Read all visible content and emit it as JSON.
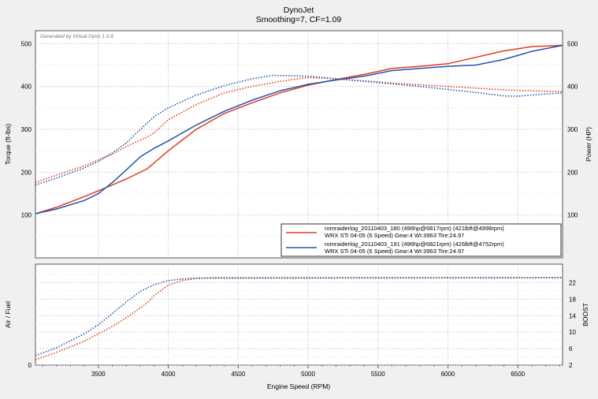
{
  "chart_data": {
    "type": "line",
    "title": "DynoJet",
    "subtitle": "Smoothing=7, CF=1.09",
    "watermark": "Generated by Virtual Dyno 1.0.8",
    "xlabel": "Engine Speed (RPM)",
    "xlim": [
      3050,
      6820
    ],
    "x_ticks": [
      "3500",
      "4000",
      "4500",
      "5000",
      "5500",
      "6000",
      "6500"
    ],
    "colors": {
      "run180": "#e03c1e",
      "run191": "#2255b0"
    },
    "legend_placement": "lower-right",
    "legend": [
      {
        "key": "run180",
        "line1": "romraiderlog_20110403_180 (496hp@6817rpm) (421lbft@4998rpm)",
        "line2": "WRX STi 04-05 (6 Speed) Gear:4 Wt:3963 Tire:24.97"
      },
      {
        "key": "run191",
        "line1": "romraiderlog_20110403_191 (496hp@6821rpm) (426lbft@4752rpm)",
        "line2": "WRX STi 04-05 (6 Speed) Gear:4 Wt:3963 Tire:24.97"
      }
    ],
    "top": {
      "ylabel_left": "Torque (ft-lbs)",
      "ylabel_right": "Power (HP)",
      "ylim": [
        0,
        530
      ],
      "y_ticks": [
        "100",
        "200",
        "300",
        "400",
        "500"
      ],
      "series": [
        {
          "key": "run180",
          "measure": "power",
          "style": "solid",
          "points": [
            [
              3050,
              103
            ],
            [
              3200,
              118
            ],
            [
              3400,
              143
            ],
            [
              3600,
              170
            ],
            [
              3700,
              184
            ],
            [
              3850,
              208
            ],
            [
              3900,
              222
            ],
            [
              4000,
              250
            ],
            [
              4100,
              275
            ],
            [
              4200,
              300
            ],
            [
              4400,
              337
            ],
            [
              4600,
              362
            ],
            [
              4800,
              385
            ],
            [
              5000,
              403
            ],
            [
              5200,
              416
            ],
            [
              5400,
              428
            ],
            [
              5600,
              442
            ],
            [
              5800,
              447
            ],
            [
              6000,
              453
            ],
            [
              6200,
              468
            ],
            [
              6400,
              483
            ],
            [
              6600,
              493
            ],
            [
              6820,
              496
            ]
          ]
        },
        {
          "key": "run191",
          "measure": "power",
          "style": "solid",
          "points": [
            [
              3050,
              103
            ],
            [
              3200,
              114
            ],
            [
              3400,
              134
            ],
            [
              3500,
              150
            ],
            [
              3600,
              176
            ],
            [
              3700,
              205
            ],
            [
              3800,
              236
            ],
            [
              3900,
              256
            ],
            [
              4000,
              273
            ],
            [
              4200,
              310
            ],
            [
              4400,
              342
            ],
            [
              4600,
              368
            ],
            [
              4800,
              390
            ],
            [
              5000,
              405
            ],
            [
              5200,
              415
            ],
            [
              5400,
              424
            ],
            [
              5600,
              437
            ],
            [
              5800,
              442
            ],
            [
              6000,
              447
            ],
            [
              6200,
              450
            ],
            [
              6400,
              463
            ],
            [
              6600,
              482
            ],
            [
              6821,
              496
            ]
          ]
        },
        {
          "key": "run180",
          "measure": "torque",
          "style": "dotted",
          "points": [
            [
              3050,
              176
            ],
            [
              3200,
              193
            ],
            [
              3400,
              215
            ],
            [
              3600,
              242
            ],
            [
              3700,
              260
            ],
            [
              3850,
              282
            ],
            [
              3900,
              292
            ],
            [
              4000,
              322
            ],
            [
              4200,
              358
            ],
            [
              4400,
              385
            ],
            [
              4600,
              400
            ],
            [
              4800,
              412
            ],
            [
              4998,
              421
            ],
            [
              5200,
              418
            ],
            [
              5400,
              413
            ],
            [
              5600,
              408
            ],
            [
              5800,
              404
            ],
            [
              6000,
              400
            ],
            [
              6200,
              396
            ],
            [
              6400,
              392
            ],
            [
              6600,
              390
            ],
            [
              6820,
              388
            ]
          ]
        },
        {
          "key": "run191",
          "measure": "torque",
          "style": "dotted",
          "points": [
            [
              3050,
              170
            ],
            [
              3200,
              186
            ],
            [
              3400,
              210
            ],
            [
              3500,
              225
            ],
            [
              3600,
              245
            ],
            [
              3700,
              268
            ],
            [
              3800,
              300
            ],
            [
              3900,
              330
            ],
            [
              4000,
              350
            ],
            [
              4200,
              380
            ],
            [
              4400,
              402
            ],
            [
              4600,
              418
            ],
            [
              4752,
              426
            ],
            [
              5000,
              424
            ],
            [
              5200,
              418
            ],
            [
              5400,
              412
            ],
            [
              5600,
              406
            ],
            [
              5800,
              400
            ],
            [
              6000,
              393
            ],
            [
              6200,
              386
            ],
            [
              6400,
              378
            ],
            [
              6500,
              377
            ],
            [
              6600,
              380
            ],
            [
              6821,
              385
            ]
          ]
        }
      ]
    },
    "bottom": {
      "ylabel_left": "Air / Fuel",
      "ylabel_right": "BOOST",
      "left_ticks": [
        "0"
      ],
      "ylim_right": [
        2,
        24
      ],
      "y_ticks_right": [
        "2",
        "6",
        "10",
        "14",
        "18",
        "22"
      ],
      "series": [
        {
          "key": "run180",
          "measure": "boost",
          "style": "dotted",
          "points": [
            [
              3050,
              3.3
            ],
            [
              3200,
              5.1
            ],
            [
              3400,
              7.8
            ],
            [
              3600,
              11.4
            ],
            [
              3700,
              13.5
            ],
            [
              3850,
              17.1
            ],
            [
              3900,
              18.9
            ],
            [
              4000,
              21.4
            ],
            [
              4100,
              22.5
            ],
            [
              4200,
              23.0
            ],
            [
              4300,
              23.2
            ],
            [
              6820,
              23.2
            ]
          ]
        },
        {
          "key": "run191",
          "measure": "boost",
          "style": "dotted",
          "points": [
            [
              3050,
              4.3
            ],
            [
              3200,
              6.2
            ],
            [
              3400,
              9.6
            ],
            [
              3500,
              11.8
            ],
            [
              3600,
              14.5
            ],
            [
              3700,
              17.3
            ],
            [
              3800,
              19.9
            ],
            [
              3900,
              21.5
            ],
            [
              4000,
              22.5
            ],
            [
              4100,
              22.9
            ],
            [
              4200,
              23.1
            ],
            [
              6821,
              23.2
            ]
          ]
        }
      ]
    }
  }
}
